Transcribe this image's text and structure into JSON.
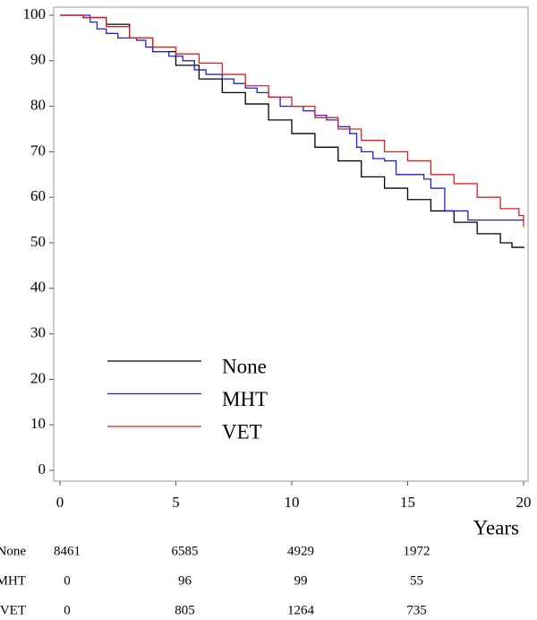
{
  "chart_data": {
    "type": "line",
    "step": true,
    "xlabel": "Years",
    "xlim": [
      0,
      20
    ],
    "xticks": [
      0,
      5,
      10,
      15,
      20
    ],
    "ylim": [
      0,
      100
    ],
    "yticks": [
      0,
      10,
      20,
      30,
      40,
      50,
      60,
      70,
      80,
      90,
      100
    ],
    "grid": false,
    "legend": "lower left",
    "series": [
      {
        "name": "None",
        "color": "#000000",
        "x": [
          0,
          1,
          2,
          3,
          4,
          5,
          6,
          7,
          8,
          9,
          10,
          11,
          12,
          13,
          14,
          15,
          16,
          17,
          18,
          19,
          19.5,
          20
        ],
        "values": [
          100,
          99.5,
          98,
          95,
          92,
          89,
          86,
          83,
          80.5,
          77,
          74,
          71,
          68,
          64.5,
          62,
          59.5,
          57,
          54.5,
          52,
          50,
          49,
          48.8
        ],
        "at_risk": [
          8461,
          6585,
          4929,
          1972
        ]
      },
      {
        "name": "MHT",
        "color": "#2020d0",
        "x": [
          0,
          1.3,
          1.6,
          2,
          2.5,
          3.3,
          3.7,
          4,
          4.7,
          5.3,
          5.8,
          6.3,
          7,
          7.5,
          8,
          8.5,
          9,
          9.5,
          10.5,
          11,
          11.5,
          12,
          12.5,
          12.8,
          13,
          13.5,
          14,
          14.5,
          15.7,
          16,
          16.6,
          17.6,
          20
        ],
        "values": [
          100,
          98.5,
          97,
          96,
          95,
          94.5,
          93,
          92,
          91,
          90,
          88,
          87,
          86,
          85,
          84,
          83,
          82,
          80,
          79,
          78,
          77,
          75.5,
          74,
          71,
          70,
          68.5,
          68,
          65,
          64,
          62,
          57,
          55,
          55
        ],
        "at_risk": [
          0,
          96,
          99,
          55
        ]
      },
      {
        "name": "VET",
        "color": "#e02020",
        "x": [
          0,
          1,
          2,
          3,
          4,
          5,
          6,
          7,
          8,
          9,
          10,
          11,
          12,
          13,
          14,
          15,
          16,
          17,
          18,
          19,
          19.8,
          20
        ],
        "values": [
          100,
          99.5,
          97.5,
          95,
          93,
          91.5,
          89.5,
          87,
          84.5,
          82,
          80,
          77.5,
          75,
          72.5,
          70,
          68,
          65,
          63,
          60,
          57.5,
          56,
          53.5
        ],
        "at_risk": [
          0,
          805,
          1264,
          735
        ]
      }
    ]
  }
}
